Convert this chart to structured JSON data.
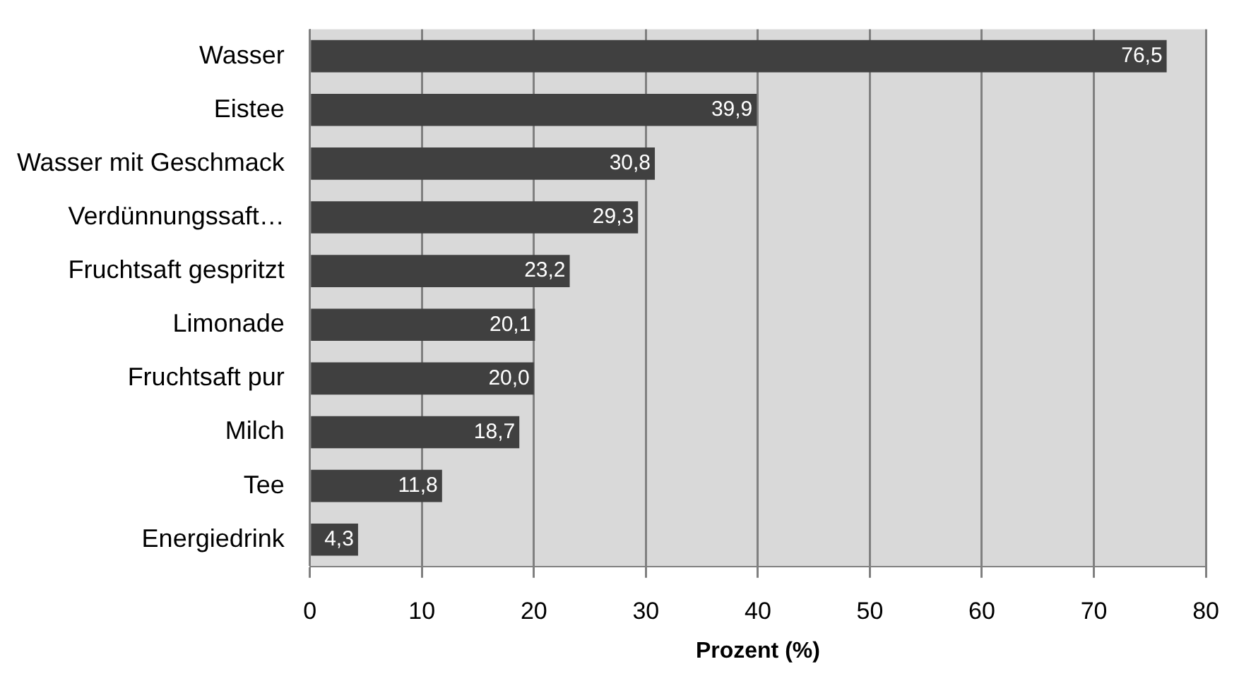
{
  "chart_data": {
    "type": "bar",
    "orientation": "horizontal",
    "xlabel": "Prozent (%)",
    "categories": [
      "Wasser",
      "Eistee",
      "Wasser mit Geschmack",
      "Verdünnungssaft…",
      "Fruchtsaft gespritzt",
      "Limonade",
      "Fruchtsaft pur",
      "Milch",
      "Tee",
      "Energiedrink"
    ],
    "values": [
      76.5,
      39.9,
      30.8,
      29.3,
      23.2,
      20.1,
      20.0,
      18.7,
      11.8,
      4.3
    ],
    "value_labels": [
      "76,5",
      "39,9",
      "30,8",
      "29,3",
      "23,2",
      "20,1",
      "20,0",
      "18,7",
      "11,8",
      "4,3"
    ],
    "color": "#404040",
    "xlim": [
      0,
      80
    ],
    "xticks": [
      0,
      10,
      20,
      30,
      40,
      50,
      60,
      70,
      80
    ],
    "grid": "x"
  }
}
